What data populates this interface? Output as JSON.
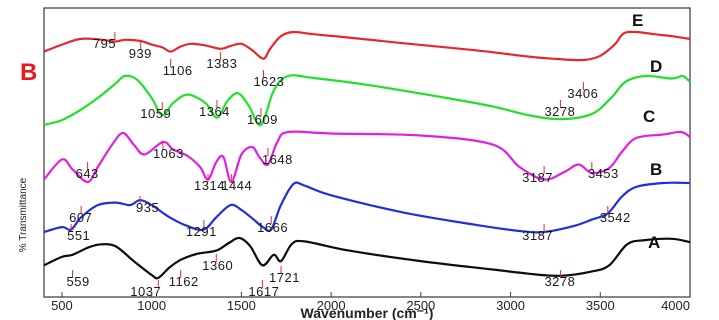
{
  "panel_label": "B",
  "chart_data": {
    "type": "line",
    "xlabel": "Wavenumber (cm⁻¹)",
    "ylabel": "% Transmittance",
    "xlim": [
      400,
      4000
    ],
    "xticks": [
      500,
      1000,
      1500,
      2000,
      2500,
      3000,
      3500,
      4000
    ],
    "grid": false,
    "series": [
      {
        "name": "E",
        "color": "#e5282c",
        "points": [
          [
            400,
            0.3
          ],
          [
            500,
            0.55
          ],
          [
            600,
            0.75
          ],
          [
            700,
            0.74
          ],
          [
            795,
            0.66
          ],
          [
            850,
            0.72
          ],
          [
            939,
            0.68
          ],
          [
            1000,
            0.55
          ],
          [
            1060,
            0.45
          ],
          [
            1106,
            0.3
          ],
          [
            1160,
            0.48
          ],
          [
            1220,
            0.58
          ],
          [
            1300,
            0.52
          ],
          [
            1383,
            0.4
          ],
          [
            1440,
            0.5
          ],
          [
            1500,
            0.58
          ],
          [
            1560,
            0.35
          ],
          [
            1623,
            0.05
          ],
          [
            1660,
            0.4
          ],
          [
            1720,
            0.85
          ],
          [
            1790,
            1.0
          ],
          [
            1900,
            0.92
          ],
          [
            2100,
            0.8
          ],
          [
            2400,
            0.6
          ],
          [
            2800,
            0.35
          ],
          [
            3100,
            0.12
          ],
          [
            3250,
            0.04
          ],
          [
            3406,
            0.0
          ],
          [
            3500,
            0.15
          ],
          [
            3580,
            0.55
          ],
          [
            3630,
            0.95
          ],
          [
            3700,
            1.0
          ],
          [
            3800,
            0.92
          ],
          [
            3900,
            0.85
          ],
          [
            4000,
            0.75
          ]
        ],
        "labels": [
          {
            "text": "795",
            "x": 795
          },
          {
            "text": "939",
            "x": 939
          },
          {
            "text": "1106",
            "x": 1106
          },
          {
            "text": "1383",
            "x": 1383
          },
          {
            "text": "1623",
            "x": 1623
          },
          {
            "text": "3406",
            "x": 3406
          }
        ]
      },
      {
        "name": "D",
        "color": "#23e02a",
        "points": [
          [
            400,
            0.0
          ],
          [
            500,
            0.1
          ],
          [
            600,
            0.3
          ],
          [
            700,
            0.55
          ],
          [
            800,
            0.85
          ],
          [
            850,
            1.0
          ],
          [
            920,
            0.92
          ],
          [
            1000,
            0.55
          ],
          [
            1059,
            0.2
          ],
          [
            1120,
            0.45
          ],
          [
            1200,
            0.62
          ],
          [
            1300,
            0.45
          ],
          [
            1364,
            0.15
          ],
          [
            1420,
            0.48
          ],
          [
            1480,
            0.65
          ],
          [
            1540,
            0.4
          ],
          [
            1609,
            0.0
          ],
          [
            1680,
            0.7
          ],
          [
            1760,
            1.0
          ],
          [
            1900,
            0.96
          ],
          [
            2200,
            0.82
          ],
          [
            2600,
            0.58
          ],
          [
            2900,
            0.38
          ],
          [
            3100,
            0.2
          ],
          [
            3278,
            0.12
          ],
          [
            3450,
            0.22
          ],
          [
            3560,
            0.55
          ],
          [
            3640,
            0.88
          ],
          [
            3750,
            1.0
          ],
          [
            3900,
            0.95
          ],
          [
            3960,
            1.0
          ],
          [
            4000,
            0.88
          ]
        ],
        "labels": [
          {
            "text": "1059",
            "x": 1059
          },
          {
            "text": "1364",
            "x": 1364
          },
          {
            "text": "1609",
            "x": 1609
          },
          {
            "text": "3278",
            "x": 3278
          }
        ]
      },
      {
        "name": "C",
        "color": "#e21ee6",
        "points": [
          [
            400,
            0.05
          ],
          [
            500,
            0.45
          ],
          [
            560,
            0.25
          ],
          [
            643,
            0.0
          ],
          [
            700,
            0.3
          ],
          [
            780,
            0.75
          ],
          [
            840,
            0.98
          ],
          [
            900,
            0.75
          ],
          [
            960,
            0.55
          ],
          [
            1063,
            0.8
          ],
          [
            1120,
            0.65
          ],
          [
            1200,
            0.52
          ],
          [
            1270,
            0.3
          ],
          [
            1314,
            0.05
          ],
          [
            1360,
            0.4
          ],
          [
            1400,
            0.5
          ],
          [
            1444,
            0.0
          ],
          [
            1500,
            0.55
          ],
          [
            1560,
            0.7
          ],
          [
            1600,
            0.5
          ],
          [
            1648,
            0.35
          ],
          [
            1700,
            0.8
          ],
          [
            1760,
            1.0
          ],
          [
            2000,
            0.97
          ],
          [
            2500,
            0.93
          ],
          [
            2900,
            0.75
          ],
          [
            3050,
            0.3
          ],
          [
            3187,
            0.05
          ],
          [
            3300,
            0.2
          ],
          [
            3380,
            0.35
          ],
          [
            3453,
            0.18
          ],
          [
            3550,
            0.28
          ],
          [
            3620,
            0.6
          ],
          [
            3700,
            0.88
          ],
          [
            3850,
            0.95
          ],
          [
            3950,
            1.0
          ],
          [
            4000,
            0.9
          ]
        ],
        "labels": [
          {
            "text": "643",
            "x": 643
          },
          {
            "text": "1063",
            "x": 1063
          },
          {
            "text": "1314",
            "x": 1314
          },
          {
            "text": "1444",
            "x": 1444
          },
          {
            "text": "1648",
            "x": 1648
          },
          {
            "text": "3187",
            "x": 3187
          },
          {
            "text": "3453",
            "x": 3453
          }
        ]
      },
      {
        "name": "B",
        "color": "#1f2fe0",
        "points": [
          [
            400,
            0.0
          ],
          [
            500,
            0.1
          ],
          [
            551,
            0.05
          ],
          [
            607,
            0.3
          ],
          [
            700,
            0.55
          ],
          [
            800,
            0.6
          ],
          [
            880,
            0.55
          ],
          [
            935,
            0.65
          ],
          [
            1000,
            0.55
          ],
          [
            1100,
            0.3
          ],
          [
            1200,
            0.12
          ],
          [
            1291,
            0.05
          ],
          [
            1360,
            0.3
          ],
          [
            1440,
            0.55
          ],
          [
            1500,
            0.45
          ],
          [
            1560,
            0.28
          ],
          [
            1620,
            0.1
          ],
          [
            1666,
            0.05
          ],
          [
            1720,
            0.55
          ],
          [
            1790,
            0.98
          ],
          [
            1850,
            0.95
          ],
          [
            2000,
            0.75
          ],
          [
            2400,
            0.4
          ],
          [
            2800,
            0.15
          ],
          [
            3050,
            0.02
          ],
          [
            3187,
            0.0
          ],
          [
            3350,
            0.12
          ],
          [
            3450,
            0.25
          ],
          [
            3542,
            0.38
          ],
          [
            3620,
            0.72
          ],
          [
            3700,
            0.92
          ],
          [
            3850,
            1.0
          ],
          [
            4000,
            1.0
          ]
        ],
        "labels": [
          {
            "text": "551",
            "x": 551
          },
          {
            "text": "607",
            "x": 607
          },
          {
            "text": "935",
            "x": 935
          },
          {
            "text": "1291",
            "x": 1291
          },
          {
            "text": "1666",
            "x": 1666
          },
          {
            "text": "3187",
            "x": 3187
          },
          {
            "text": "3542",
            "x": 3542
          }
        ]
      },
      {
        "name": "A",
        "color": "#0d0d0d",
        "points": [
          [
            400,
            0.35
          ],
          [
            500,
            0.55
          ],
          [
            559,
            0.6
          ],
          [
            650,
            0.78
          ],
          [
            720,
            0.85
          ],
          [
            800,
            0.8
          ],
          [
            900,
            0.45
          ],
          [
            1000,
            0.12
          ],
          [
            1037,
            0.05
          ],
          [
            1100,
            0.3
          ],
          [
            1162,
            0.48
          ],
          [
            1250,
            0.62
          ],
          [
            1360,
            0.7
          ],
          [
            1430,
            0.88
          ],
          [
            1490,
            1.0
          ],
          [
            1550,
            0.8
          ],
          [
            1617,
            0.35
          ],
          [
            1680,
            0.6
          ],
          [
            1721,
            0.45
          ],
          [
            1780,
            0.85
          ],
          [
            1850,
            0.92
          ],
          [
            2100,
            0.7
          ],
          [
            2500,
            0.45
          ],
          [
            2900,
            0.25
          ],
          [
            3100,
            0.15
          ],
          [
            3278,
            0.1
          ],
          [
            3450,
            0.2
          ],
          [
            3550,
            0.35
          ],
          [
            3650,
            0.85
          ],
          [
            3750,
            0.95
          ],
          [
            3900,
            0.98
          ],
          [
            4000,
            0.9
          ]
        ],
        "labels": [
          {
            "text": "559",
            "x": 559
          },
          {
            "text": "1037",
            "x": 1037
          },
          {
            "text": "1162",
            "x": 1162
          },
          {
            "text": "1360",
            "x": 1360
          },
          {
            "text": "1617",
            "x": 1617
          },
          {
            "text": "1721",
            "x": 1721
          },
          {
            "text": "3278",
            "x": 3278
          }
        ]
      }
    ]
  }
}
